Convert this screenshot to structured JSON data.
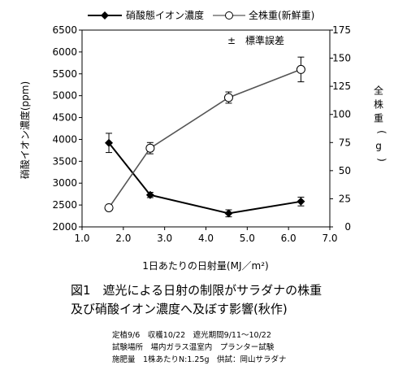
{
  "chart_data": {
    "type": "line",
    "title": "図1　遮光による日射の制限がサラダナの株重及び硝酸イオン濃度へ及ぼす影響(秋作)",
    "xlabel": "1日あたりの日射量(MJ／m²)",
    "ylabel_left": "硝酸イオン濃度(ppm)",
    "ylabel_right": "全株重(g)",
    "xlim": [
      1.0,
      7.0
    ],
    "ylim_left": [
      2000,
      6500
    ],
    "ylim_right": [
      0,
      175
    ],
    "x_ticks": [
      "1.0",
      "2.0",
      "3.0",
      "4.0",
      "5.0",
      "6.0",
      "7.0"
    ],
    "y_left_ticks": [
      "2000",
      "2500",
      "3000",
      "3500",
      "4000",
      "4500",
      "5000",
      "5500",
      "6000",
      "6500"
    ],
    "y_right_ticks": [
      "0",
      "25",
      "50",
      "75",
      "100",
      "125",
      "150",
      "175"
    ],
    "error_note": "±　標準誤差",
    "legend_position": "top",
    "series": [
      {
        "name": "硝酸態イオン濃度",
        "axis": "left",
        "marker": "diamond-filled",
        "color": "#000000",
        "x": [
          1.65,
          2.65,
          4.55,
          6.3
        ],
        "y": [
          3920,
          2730,
          2310,
          2580
        ],
        "err": [
          220,
          60,
          80,
          100
        ]
      },
      {
        "name": "全株重(新鮮重)",
        "axis": "right",
        "marker": "circle-open",
        "color": "#555555",
        "x": [
          1.65,
          2.65,
          4.55,
          6.3
        ],
        "y": [
          17,
          70,
          115,
          140
        ],
        "err": [
          0,
          5,
          5,
          11
        ]
      }
    ]
  },
  "caption": {
    "line1": "図1　遮光による日射の制限がサラダナの株重",
    "line2": "及び硝酸イオン濃度へ及ぼす影響(秋作)"
  },
  "notes": {
    "line1": "定植9/6　収穫10/22　遮光期間9/11～10/22",
    "line2": "試験場所　場内ガラス温室内　プランター試験",
    "line3": "施肥量　1株あたりN:1.25g　供試：岡山サラダナ"
  }
}
